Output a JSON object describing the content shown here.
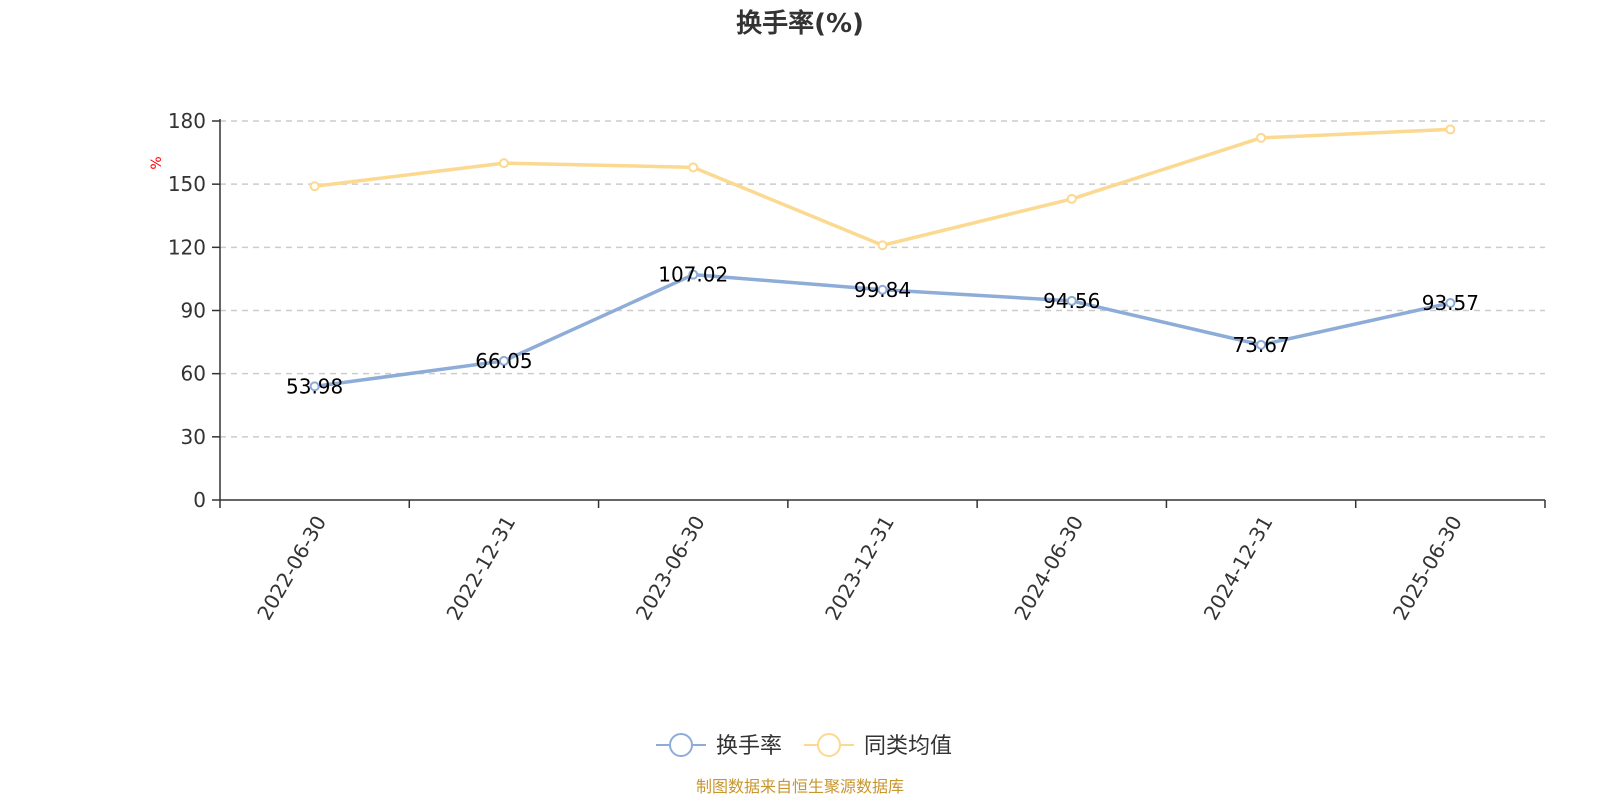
{
  "chart_data": {
    "type": "line",
    "title": "换手率(%)",
    "ylabel": "%",
    "ylim": [
      0,
      180
    ],
    "yticks": [
      0,
      30,
      60,
      90,
      120,
      150,
      180
    ],
    "categories": [
      "2022-06-30",
      "2022-12-31",
      "2023-06-30",
      "2023-12-31",
      "2024-06-30",
      "2024-12-31",
      "2025-06-30"
    ],
    "series": [
      {
        "name": "换手率",
        "color": "#8eacd8",
        "values": [
          53.98,
          66.05,
          107.02,
          99.84,
          94.56,
          73.67,
          93.57
        ],
        "show_labels": true
      },
      {
        "name": "同类均值",
        "color": "#fbd990",
        "values": [
          149,
          160,
          158,
          121,
          143,
          172,
          176
        ],
        "show_labels": false
      }
    ],
    "grid": "horizontal-dashed",
    "legend_position": "bottom-center",
    "source_note": "制图数据来自恒生聚源数据库"
  }
}
